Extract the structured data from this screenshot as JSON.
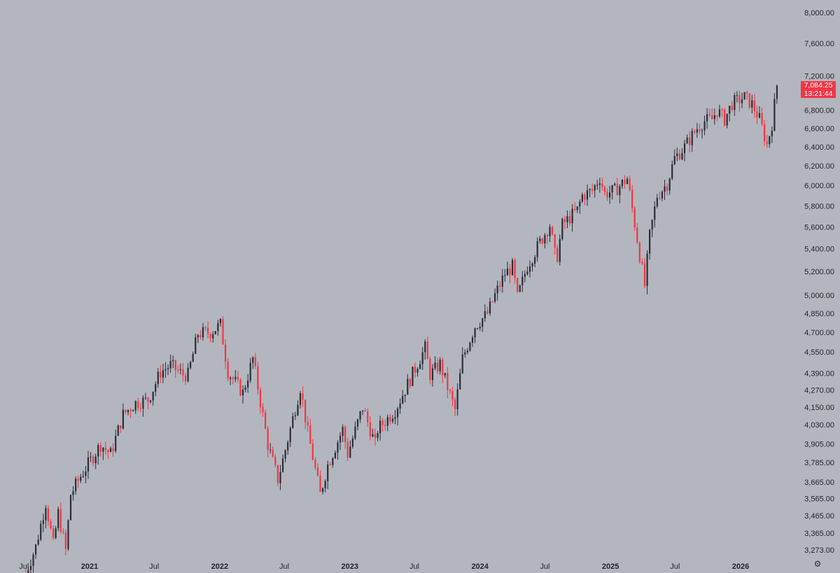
{
  "chart_data": {
    "type": "candlestick",
    "title": "",
    "interval": "weekly",
    "price_scale": "log",
    "grid": false,
    "colors": {
      "background": "#b3b6be",
      "up": "#2a2e39",
      "down": "#f23645",
      "axis_text": "#1f2328"
    },
    "price_axis": {
      "ticks": [
        "8,000.00",
        "7,600.00",
        "7,200.00",
        "6,800.00",
        "6,600.00",
        "6,400.00",
        "6,200.00",
        "6,000.00",
        "5,800.00",
        "5,600.00",
        "5,400.00",
        "5,200.00",
        "5,000.00",
        "4,850.00",
        "4,700.00",
        "4,550.00",
        "4,390.00",
        "4,270.00",
        "4,150.00",
        "4,030.00",
        "3,905.00",
        "3,785.00",
        "3,665.00",
        "3,565.00",
        "3,465.00",
        "3,365.00",
        "3,273.00"
      ],
      "range": [
        3200,
        8000
      ]
    },
    "time_axis": {
      "range": [
        "2020-06-29",
        "2026-06-08"
      ],
      "ticks": [
        {
          "label": "Jul",
          "date": "2020-07-01",
          "major": false
        },
        {
          "label": "2021",
          "date": "2021-01-01",
          "major": true
        },
        {
          "label": "Jul",
          "date": "2021-07-01",
          "major": false
        },
        {
          "label": "2022",
          "date": "2022-01-01",
          "major": true
        },
        {
          "label": "Jul",
          "date": "2022-07-01",
          "major": false
        },
        {
          "label": "2023",
          "date": "2023-01-01",
          "major": true
        },
        {
          "label": "Jul",
          "date": "2023-07-01",
          "major": false
        },
        {
          "label": "2024",
          "date": "2024-01-01",
          "major": true
        },
        {
          "label": "Jul",
          "date": "2024-07-01",
          "major": false
        },
        {
          "label": "2025",
          "date": "2025-01-01",
          "major": true
        },
        {
          "label": "Jul",
          "date": "2025-07-01",
          "major": false
        },
        {
          "label": "2026",
          "date": "2026-01-01",
          "major": true
        },
        {
          "label": "Jul",
          "date": "2026-07-01",
          "major": false
        }
      ]
    },
    "last_price": {
      "value": "7,084.25",
      "countdown": "13:21:44"
    },
    "close_path": [
      [
        "2020-07-06",
        3150
      ],
      [
        "2020-08-03",
        3290
      ],
      [
        "2020-08-31",
        3540
      ],
      [
        "2020-09-21",
        3300
      ],
      [
        "2020-10-05",
        3480
      ],
      [
        "2020-10-26",
        3270
      ],
      [
        "2020-11-09",
        3590
      ],
      [
        "2020-12-07",
        3700
      ],
      [
        "2021-01-04",
        3800
      ],
      [
        "2021-02-01",
        3900
      ],
      [
        "2021-03-01",
        3840
      ],
      [
        "2021-04-05",
        4100
      ],
      [
        "2021-05-10",
        4180
      ],
      [
        "2021-06-14",
        4200
      ],
      [
        "2021-07-19",
        4400
      ],
      [
        "2021-08-16",
        4450
      ],
      [
        "2021-09-20",
        4380
      ],
      [
        "2021-10-04",
        4380
      ],
      [
        "2021-11-01",
        4690
      ],
      [
        "2021-12-06",
        4700
      ],
      [
        "2022-01-03",
        4760
      ],
      [
        "2022-01-24",
        4400
      ],
      [
        "2022-03-07",
        4250
      ],
      [
        "2022-04-04",
        4500
      ],
      [
        "2022-05-16",
        3900
      ],
      [
        "2022-06-13",
        3680
      ],
      [
        "2022-06-27",
        3800
      ],
      [
        "2022-08-15",
        4290
      ],
      [
        "2022-09-05",
        3980
      ],
      [
        "2022-10-10",
        3590
      ],
      [
        "2022-10-31",
        3770
      ],
      [
        "2022-12-12",
        4000
      ],
      [
        "2022-12-26",
        3840
      ],
      [
        "2023-02-06",
        4150
      ],
      [
        "2023-03-13",
        3900
      ],
      [
        "2023-03-20",
        4000
      ],
      [
        "2023-05-08",
        4130
      ],
      [
        "2023-07-31",
        4580
      ],
      [
        "2023-08-14",
        4380
      ],
      [
        "2023-09-11",
        4460
      ],
      [
        "2023-10-02",
        4290
      ],
      [
        "2023-10-23",
        4130
      ],
      [
        "2023-11-13",
        4500
      ],
      [
        "2023-12-18",
        4750
      ],
      [
        "2024-01-22",
        4850
      ],
      [
        "2024-02-12",
        5000
      ],
      [
        "2024-03-11",
        5180
      ],
      [
        "2024-04-01",
        5240
      ],
      [
        "2024-04-15",
        4980
      ],
      [
        "2024-05-13",
        5250
      ],
      [
        "2024-06-17",
        5460
      ],
      [
        "2024-07-15",
        5620
      ],
      [
        "2024-07-29",
        5350
      ],
      [
        "2024-08-05",
        5340
      ],
      [
        "2024-08-19",
        5620
      ],
      [
        "2024-09-30",
        5760
      ],
      [
        "2024-10-14",
        5900
      ],
      [
        "2024-11-11",
        5950
      ],
      [
        "2024-12-02",
        6080
      ],
      [
        "2024-12-16",
        5920
      ],
      [
        "2025-01-13",
        5950
      ],
      [
        "2025-02-17",
        6070
      ],
      [
        "2025-03-10",
        5630
      ],
      [
        "2025-04-07",
        5080
      ],
      [
        "2025-04-21",
        5520
      ],
      [
        "2025-05-12",
        5900
      ],
      [
        "2025-06-09",
        6020
      ],
      [
        "2025-06-30",
        6280
      ],
      [
        "2025-07-28",
        6400
      ],
      [
        "2025-09-01",
        6600
      ],
      [
        "2025-09-22",
        6680
      ],
      [
        "2025-10-13",
        6700
      ],
      [
        "2025-10-27",
        6800
      ],
      [
        "2025-11-17",
        6700
      ],
      [
        "2025-12-08",
        6880
      ],
      [
        "2026-01-12",
        6950
      ],
      [
        "2026-02-02",
        6870
      ],
      [
        "2026-02-23",
        6700
      ],
      [
        "2026-03-16",
        6420
      ],
      [
        "2026-03-30",
        6650
      ],
      [
        "2026-04-13",
        7084
      ]
    ]
  }
}
